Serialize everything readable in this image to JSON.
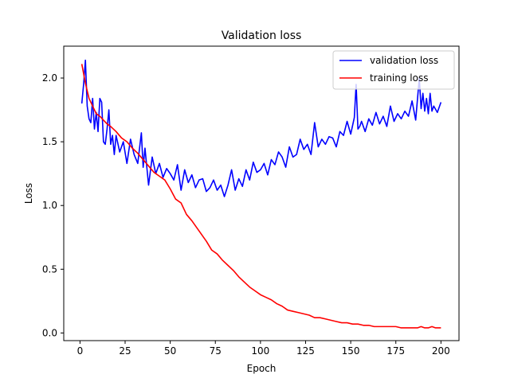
{
  "chart_data": {
    "type": "line",
    "title": "Validation loss",
    "xlabel": "Epoch",
    "ylabel": "Loss",
    "xlim": [
      -9,
      210
    ],
    "ylim": [
      -0.06,
      2.25
    ],
    "xticks": [
      0,
      25,
      50,
      75,
      100,
      125,
      150,
      175,
      200
    ],
    "yticks": [
      0.0,
      0.5,
      1.0,
      1.5,
      2.0
    ],
    "xtick_labels": [
      "0",
      "25",
      "50",
      "75",
      "100",
      "125",
      "150",
      "175",
      "200"
    ],
    "ytick_labels": [
      "0.0",
      "0.5",
      "1.0",
      "1.5",
      "2.0"
    ],
    "grid": false,
    "legend_position": "top-right",
    "series": [
      {
        "name": "validation loss",
        "color": "#0000ff",
        "x": [
          1,
          2,
          3,
          4,
          5,
          6,
          7,
          8,
          9,
          10,
          11,
          12,
          13,
          14,
          15,
          16,
          17,
          18,
          19,
          20,
          22,
          24,
          26,
          28,
          30,
          32,
          34,
          35,
          36,
          38,
          40,
          42,
          44,
          46,
          48,
          50,
          52,
          54,
          56,
          58,
          60,
          62,
          64,
          66,
          68,
          70,
          72,
          74,
          76,
          78,
          80,
          82,
          84,
          86,
          88,
          90,
          92,
          94,
          96,
          98,
          100,
          102,
          104,
          106,
          108,
          110,
          112,
          114,
          116,
          118,
          120,
          122,
          124,
          126,
          128,
          130,
          132,
          134,
          136,
          138,
          140,
          142,
          144,
          146,
          148,
          150,
          152,
          153,
          154,
          155,
          156,
          158,
          160,
          162,
          164,
          166,
          168,
          170,
          172,
          174,
          176,
          178,
          180,
          182,
          184,
          186,
          188,
          189,
          190,
          191,
          192,
          193,
          194,
          195,
          196,
          198,
          200
        ],
        "y": [
          1.8,
          1.95,
          2.14,
          1.78,
          1.68,
          1.65,
          1.84,
          1.6,
          1.73,
          1.58,
          1.84,
          1.81,
          1.5,
          1.48,
          1.6,
          1.75,
          1.48,
          1.55,
          1.4,
          1.55,
          1.42,
          1.5,
          1.33,
          1.52,
          1.4,
          1.33,
          1.57,
          1.3,
          1.45,
          1.16,
          1.38,
          1.25,
          1.33,
          1.22,
          1.29,
          1.25,
          1.2,
          1.32,
          1.12,
          1.28,
          1.18,
          1.24,
          1.14,
          1.2,
          1.21,
          1.11,
          1.14,
          1.2,
          1.12,
          1.16,
          1.07,
          1.16,
          1.28,
          1.12,
          1.21,
          1.15,
          1.28,
          1.2,
          1.34,
          1.26,
          1.28,
          1.33,
          1.24,
          1.36,
          1.32,
          1.42,
          1.38,
          1.3,
          1.46,
          1.38,
          1.4,
          1.52,
          1.44,
          1.48,
          1.4,
          1.65,
          1.46,
          1.52,
          1.48,
          1.54,
          1.53,
          1.46,
          1.58,
          1.55,
          1.66,
          1.56,
          1.69,
          1.95,
          1.6,
          1.62,
          1.66,
          1.58,
          1.68,
          1.63,
          1.73,
          1.64,
          1.7,
          1.62,
          1.78,
          1.66,
          1.72,
          1.68,
          1.74,
          1.7,
          1.82,
          1.67,
          2.0,
          1.76,
          1.88,
          1.74,
          1.84,
          1.72,
          1.88,
          1.74,
          1.78,
          1.73,
          1.81
        ]
      },
      {
        "name": "training loss",
        "color": "#ff0000",
        "x": [
          1,
          3,
          5,
          7,
          9,
          11,
          13,
          15,
          17,
          20,
          23,
          26,
          29,
          32,
          35,
          38,
          41,
          44,
          47,
          50,
          53,
          56,
          59,
          62,
          65,
          68,
          70,
          73,
          76,
          79,
          82,
          85,
          88,
          91,
          94,
          97,
          100,
          103,
          106,
          109,
          112,
          115,
          118,
          121,
          124,
          127,
          130,
          133,
          136,
          139,
          142,
          145,
          148,
          151,
          154,
          157,
          160,
          163,
          166,
          169,
          172,
          175,
          178,
          181,
          184,
          187,
          189,
          191,
          193,
          195,
          197,
          200
        ],
        "y": [
          2.11,
          1.96,
          1.84,
          1.78,
          1.72,
          1.7,
          1.67,
          1.64,
          1.62,
          1.58,
          1.53,
          1.5,
          1.45,
          1.41,
          1.36,
          1.31,
          1.26,
          1.23,
          1.2,
          1.13,
          1.05,
          1.02,
          0.93,
          0.88,
          0.82,
          0.76,
          0.72,
          0.65,
          0.62,
          0.57,
          0.53,
          0.49,
          0.44,
          0.4,
          0.36,
          0.33,
          0.3,
          0.28,
          0.26,
          0.23,
          0.21,
          0.18,
          0.17,
          0.16,
          0.15,
          0.14,
          0.12,
          0.12,
          0.11,
          0.1,
          0.09,
          0.08,
          0.08,
          0.07,
          0.07,
          0.06,
          0.06,
          0.05,
          0.05,
          0.05,
          0.05,
          0.05,
          0.04,
          0.04,
          0.04,
          0.04,
          0.05,
          0.04,
          0.04,
          0.05,
          0.04,
          0.04
        ]
      }
    ]
  }
}
